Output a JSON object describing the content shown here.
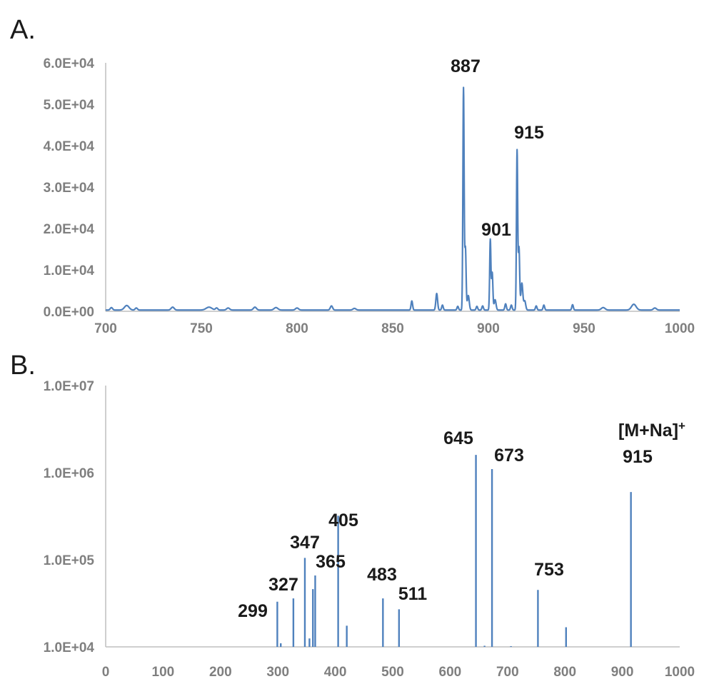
{
  "chart_data": [
    {
      "panel": "A.",
      "type": "line",
      "xlim": [
        700,
        1000
      ],
      "ylim": [
        0,
        60000
      ],
      "xticks": [
        700,
        750,
        800,
        850,
        900,
        950,
        1000
      ],
      "xtick_labels": [
        "700",
        "750",
        "800",
        "850",
        "900",
        "950",
        "1000"
      ],
      "yticks": [
        0,
        10000,
        20000,
        30000,
        40000,
        50000,
        60000
      ],
      "ytick_labels": [
        "0.0E+00",
        "1.0E+04",
        "2.0E+04",
        "3.0E+04",
        "4.0E+04",
        "5.0E+04",
        "6.0E+04"
      ],
      "color": "#4f81bd",
      "baseline": 300,
      "peaks": [
        {
          "x": 703,
          "y": 600,
          "w": 0.6
        },
        {
          "x": 711,
          "y": 1100,
          "w": 1.2
        },
        {
          "x": 716,
          "y": 500,
          "w": 0.6
        },
        {
          "x": 735,
          "y": 700,
          "w": 0.8
        },
        {
          "x": 754,
          "y": 700,
          "w": 1.5
        },
        {
          "x": 758,
          "y": 500,
          "w": 0.6
        },
        {
          "x": 764,
          "y": 500,
          "w": 0.8
        },
        {
          "x": 778,
          "y": 700,
          "w": 0.8
        },
        {
          "x": 789,
          "y": 600,
          "w": 1.0
        },
        {
          "x": 800,
          "y": 500,
          "w": 0.8
        },
        {
          "x": 818,
          "y": 1000,
          "w": 0.6
        },
        {
          "x": 830,
          "y": 400,
          "w": 0.8
        },
        {
          "x": 860,
          "y": 2200,
          "w": 0.4
        },
        {
          "x": 873,
          "y": 4000,
          "w": 0.45
        },
        {
          "x": 876,
          "y": 1200,
          "w": 0.4
        },
        {
          "x": 884,
          "y": 900,
          "w": 0.4
        },
        {
          "x": 887,
          "y": 53500,
          "w": 0.32
        },
        {
          "x": 888,
          "y": 15000,
          "w": 0.35
        },
        {
          "x": 889.5,
          "y": 3500,
          "w": 0.5
        },
        {
          "x": 894,
          "y": 900,
          "w": 0.4
        },
        {
          "x": 897,
          "y": 1000,
          "w": 0.4
        },
        {
          "x": 901,
          "y": 17000,
          "w": 0.32
        },
        {
          "x": 902,
          "y": 9000,
          "w": 0.35
        },
        {
          "x": 903.5,
          "y": 2500,
          "w": 0.5
        },
        {
          "x": 909,
          "y": 1500,
          "w": 0.4
        },
        {
          "x": 912,
          "y": 1200,
          "w": 0.4
        },
        {
          "x": 915,
          "y": 38500,
          "w": 0.32
        },
        {
          "x": 916,
          "y": 15000,
          "w": 0.35
        },
        {
          "x": 917.5,
          "y": 6500,
          "w": 0.5
        },
        {
          "x": 919,
          "y": 2200,
          "w": 0.5
        },
        {
          "x": 925,
          "y": 1000,
          "w": 0.4
        },
        {
          "x": 929,
          "y": 1200,
          "w": 0.4
        },
        {
          "x": 944,
          "y": 1300,
          "w": 0.4
        },
        {
          "x": 960,
          "y": 600,
          "w": 1.0
        },
        {
          "x": 976,
          "y": 1400,
          "w": 1.2
        },
        {
          "x": 987,
          "y": 500,
          "w": 0.8
        }
      ],
      "peak_labels": [
        {
          "text": "887",
          "x": 887,
          "y": 53500
        },
        {
          "text": "901",
          "x": 901,
          "y": 17000
        },
        {
          "text": "915",
          "x": 915,
          "y": 38500
        }
      ]
    },
    {
      "panel": "B.",
      "type": "bar",
      "scale": "log",
      "xlim": [
        0,
        1000
      ],
      "ylim": [
        10000,
        10000000
      ],
      "xticks": [
        0,
        100,
        200,
        300,
        400,
        500,
        600,
        700,
        800,
        900,
        1000
      ],
      "xtick_labels": [
        "0",
        "100",
        "200",
        "300",
        "400",
        "500",
        "600",
        "700",
        "800",
        "900",
        "1000"
      ],
      "yticks": [
        10000,
        100000,
        1000000,
        10000000
      ],
      "ytick_labels": [
        "1.0E+04",
        "1.0E+05",
        "1.0E+06",
        "1.0E+07"
      ],
      "color": "#4f81bd",
      "sticks": [
        {
          "x": 299,
          "y": 33000
        },
        {
          "x": 305,
          "y": 11000
        },
        {
          "x": 327,
          "y": 36000
        },
        {
          "x": 347,
          "y": 105000
        },
        {
          "x": 355,
          "y": 12500
        },
        {
          "x": 361,
          "y": 46000
        },
        {
          "x": 365,
          "y": 66000
        },
        {
          "x": 405,
          "y": 320000
        },
        {
          "x": 420,
          "y": 17500
        },
        {
          "x": 483,
          "y": 36000
        },
        {
          "x": 511,
          "y": 27000
        },
        {
          "x": 645,
          "y": 1600000
        },
        {
          "x": 660,
          "y": 10300
        },
        {
          "x": 673,
          "y": 1100000
        },
        {
          "x": 706,
          "y": 10200
        },
        {
          "x": 753,
          "y": 45000
        },
        {
          "x": 802,
          "y": 16800
        },
        {
          "x": 915,
          "y": 600000
        }
      ],
      "peak_labels": [
        {
          "text": "299",
          "x": 299
        },
        {
          "text": "327",
          "x": 327
        },
        {
          "text": "347",
          "x": 347
        },
        {
          "text": "365",
          "x": 365
        },
        {
          "text": "405",
          "x": 405
        },
        {
          "text": "483",
          "x": 483
        },
        {
          "text": "511",
          "x": 511
        },
        {
          "text": "645",
          "x": 645
        },
        {
          "text": "673",
          "x": 673
        },
        {
          "text": "753",
          "x": 753
        },
        {
          "text": "[M+Na]",
          "sup": "+",
          "x": 915
        },
        {
          "text": "915",
          "x": 915
        }
      ]
    }
  ]
}
